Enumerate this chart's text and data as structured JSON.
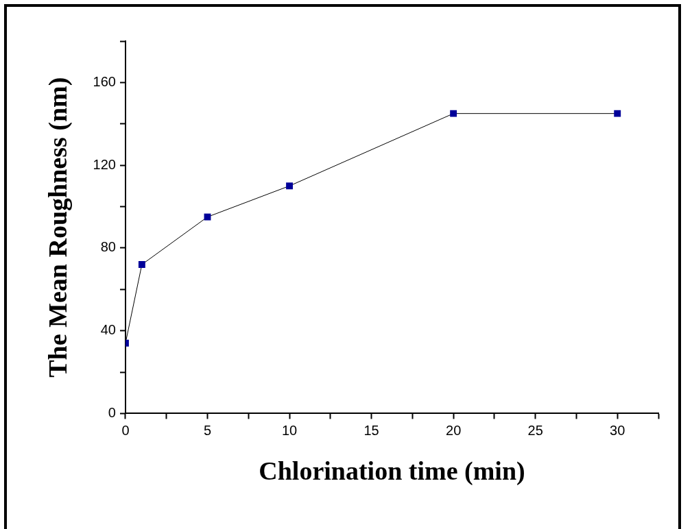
{
  "chart_data": {
    "type": "line",
    "xlabel": "Chlorination time (min)",
    "ylabel": "The Mean Roughness (nm)",
    "x": [
      0,
      1,
      5,
      10,
      20,
      30
    ],
    "series": [
      {
        "color": "#000099",
        "values": [
          34,
          72,
          95,
          110,
          145,
          145
        ]
      }
    ],
    "xlim": [
      0,
      32.5
    ],
    "ylim": [
      0,
      180
    ],
    "xticks": [
      0,
      {
        "value": 2.5,
        "label": null
      },
      5,
      {
        "value": 7.5,
        "label": null
      },
      10,
      {
        "value": 12.5,
        "label": null
      },
      15,
      {
        "value": 17.5,
        "label": null
      },
      20,
      {
        "value": 22.5,
        "label": null
      },
      25,
      {
        "value": 27.5,
        "label": null
      },
      30,
      {
        "value": 32.5,
        "label": null
      }
    ],
    "yticks": [
      0,
      {
        "value": 20,
        "label": null
      },
      40,
      {
        "value": 60,
        "label": null
      },
      80,
      {
        "value": 100,
        "label": null
      },
      120,
      {
        "value": 140,
        "label": null
      },
      160,
      {
        "value": 180,
        "label": null
      }
    ],
    "grid": false,
    "legend": false,
    "marker": "square",
    "line_style": "solid"
  }
}
